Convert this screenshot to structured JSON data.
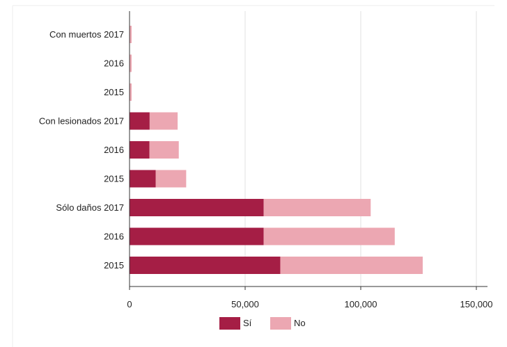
{
  "chart_data": {
    "type": "bar",
    "orientation": "horizontal",
    "stacked": true,
    "categories": [
      "Con muertos 2017",
      "2016",
      "2015",
      "Con lesionados 2017",
      "2016",
      "2015",
      "Sólo daños 2017",
      "2016",
      "2015"
    ],
    "series": [
      {
        "name": "Sí",
        "color": "#a51e45",
        "values": [
          0,
          0,
          0,
          8700,
          8600,
          11300,
          58000,
          58000,
          65200
        ]
      },
      {
        "name": "No",
        "color": "#eca7b2",
        "values": [
          900,
          900,
          900,
          12100,
          12700,
          13200,
          46300,
          56700,
          61600
        ]
      }
    ],
    "x_ticks": [
      "0",
      "50,000",
      "100,000",
      "150,000"
    ],
    "xlim": [
      0,
      150000
    ],
    "grid": "vertical",
    "legend_position": "bottom-center",
    "title": "",
    "xlabel": "",
    "ylabel": ""
  }
}
